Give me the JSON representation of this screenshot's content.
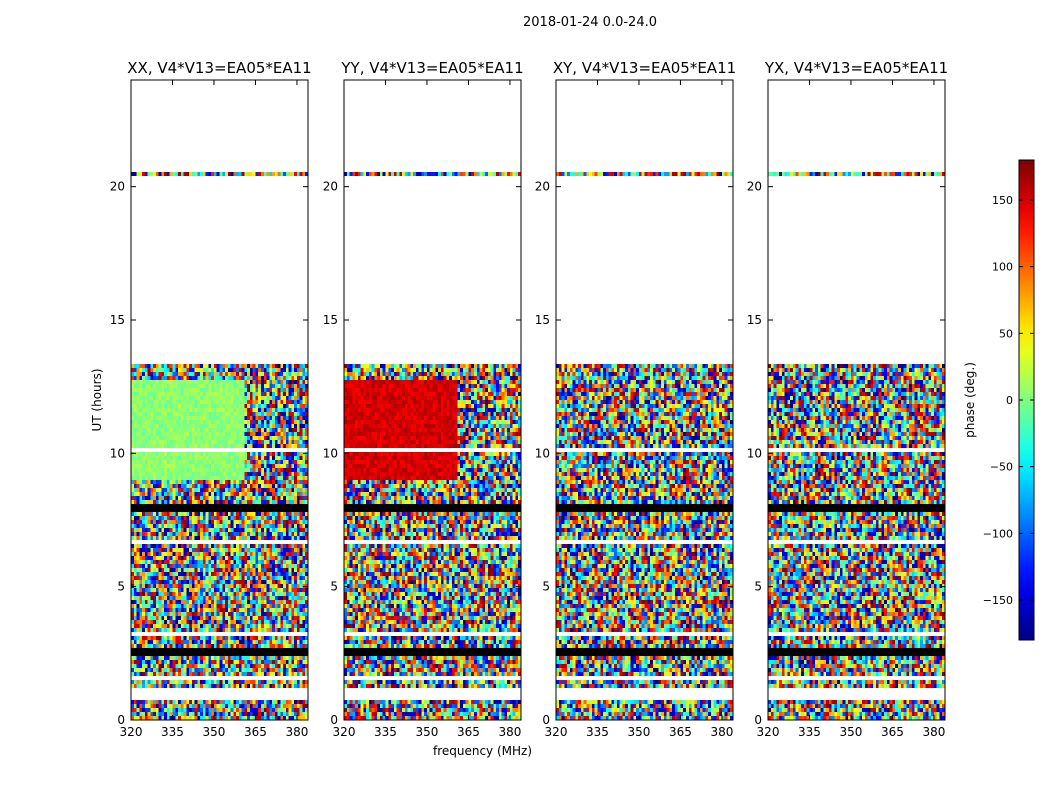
{
  "figure": {
    "suptitle": "2018-01-24 0.0-24.0"
  },
  "chart_data": [
    {
      "type": "heatmap",
      "title": "XX, V4*V13=EA05*EA11",
      "xlabel": "",
      "ylabel": "UT (hours)",
      "xticks": [
        320,
        335,
        350,
        365,
        380
      ],
      "yticks": [
        0,
        5,
        10,
        15,
        20
      ],
      "xlim": [
        320,
        384
      ],
      "ylim": [
        0,
        24
      ],
      "pattern": "xx",
      "gaps_hours": [
        [
          0.75,
          1.15
        ],
        [
          1.45,
          1.7
        ],
        [
          13.4,
          20.35
        ],
        [
          20.6,
          24.0
        ]
      ],
      "coherent_block": {
        "t_range": [
          9.0,
          12.7
        ],
        "phase_deg": 5,
        "f_end_MHz": 361
      }
    },
    {
      "type": "heatmap",
      "title": "YY, V4*V13=EA05*EA11",
      "xlabel": "frequency (MHz)",
      "ylabel": "",
      "xticks": [
        320,
        335,
        350,
        365,
        380
      ],
      "yticks": [
        0,
        5,
        10,
        15,
        20
      ],
      "xlim": [
        320,
        384
      ],
      "ylim": [
        0,
        24
      ],
      "pattern": "yy",
      "gaps_hours": [
        [
          0.75,
          1.15
        ],
        [
          1.45,
          1.7
        ],
        [
          13.4,
          20.35
        ],
        [
          20.6,
          24.0
        ]
      ],
      "coherent_block": {
        "t_range": [
          9.0,
          12.7
        ],
        "phase_deg": 150,
        "f_end_MHz": 361
      }
    },
    {
      "type": "heatmap",
      "title": "XY, V4*V13=EA05*EA11",
      "xlabel": "",
      "ylabel": "",
      "xticks": [
        320,
        335,
        350,
        365,
        380
      ],
      "yticks": [
        0,
        5,
        10,
        15,
        20
      ],
      "xlim": [
        320,
        384
      ],
      "ylim": [
        0,
        24
      ],
      "pattern": "noise",
      "gaps_hours": [
        [
          0.75,
          1.15
        ],
        [
          1.45,
          1.7
        ],
        [
          13.4,
          20.35
        ],
        [
          20.6,
          24.0
        ]
      ]
    },
    {
      "type": "heatmap",
      "title": "YX, V4*V13=EA05*EA11",
      "xlabel": "",
      "ylabel": "",
      "xticks": [
        320,
        335,
        350,
        365,
        380
      ],
      "yticks": [
        0,
        5,
        10,
        15,
        20
      ],
      "xlim": [
        320,
        384
      ],
      "ylim": [
        0,
        24
      ],
      "pattern": "noise",
      "gaps_hours": [
        [
          0.75,
          1.15
        ],
        [
          1.45,
          1.7
        ],
        [
          13.4,
          20.35
        ],
        [
          20.6,
          24.0
        ]
      ]
    }
  ],
  "colorbar": {
    "label": "phase (deg.)",
    "range": [
      -180,
      180
    ],
    "ticks": [
      -150,
      -100,
      -50,
      0,
      50,
      100,
      150
    ],
    "tick_labels": [
      "−150",
      "−100",
      "−50",
      "0",
      "50",
      "100",
      "150"
    ],
    "colormap": "jet"
  }
}
